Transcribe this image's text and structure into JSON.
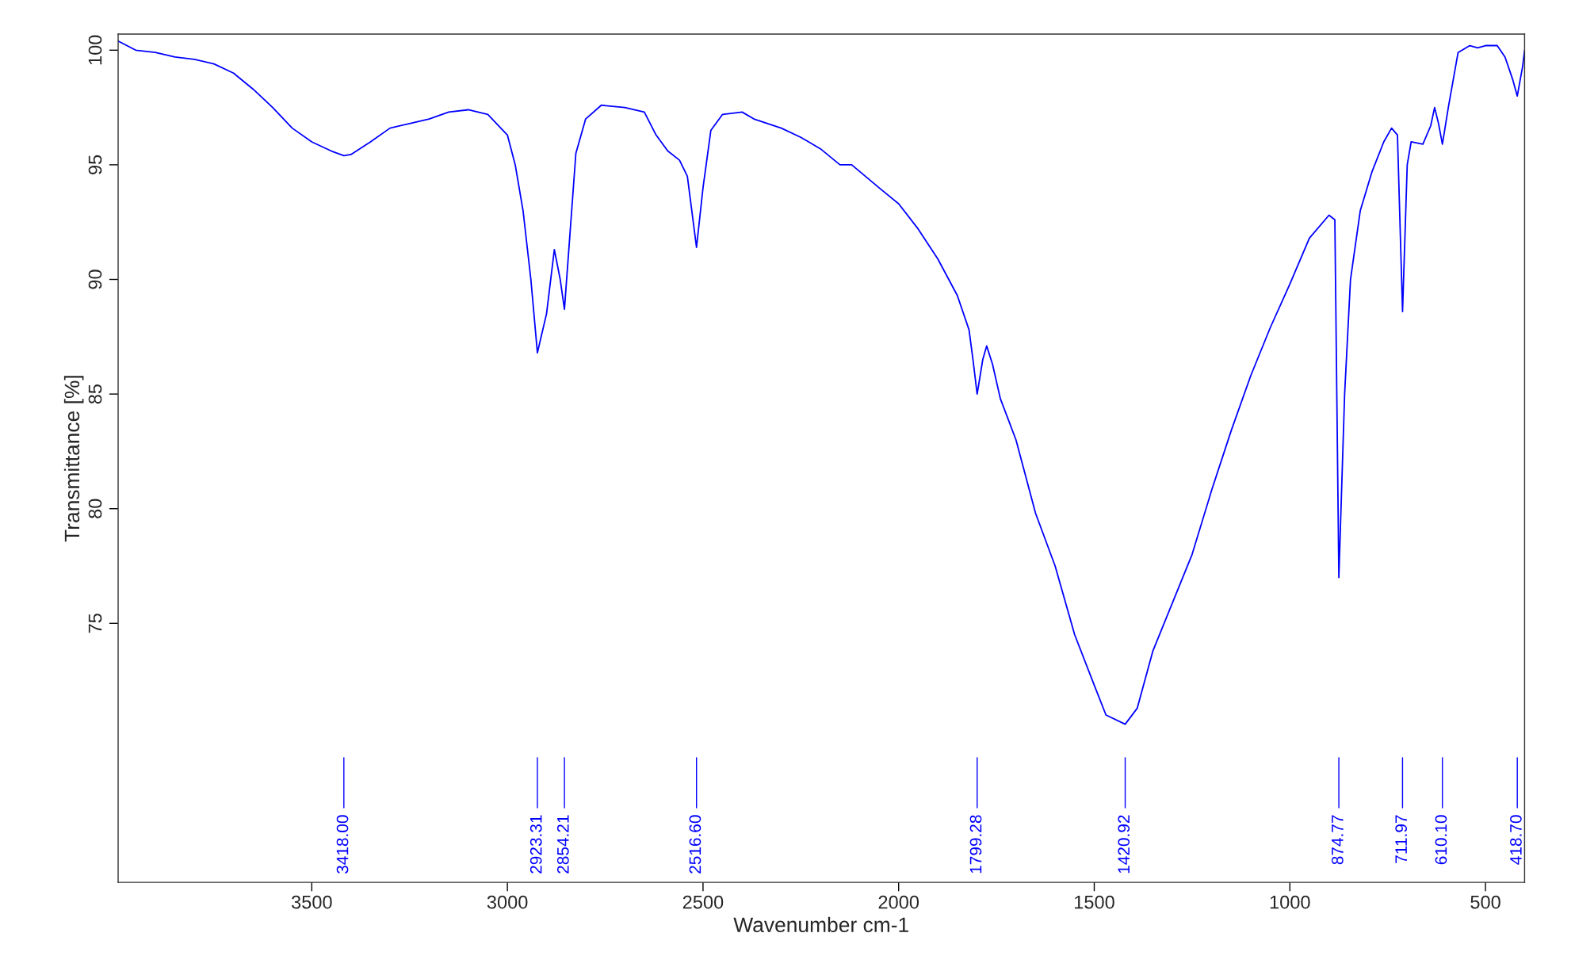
{
  "chart_data": {
    "type": "line",
    "xlabel": "Wavenumber cm-1",
    "ylabel": "Transmittance [%]",
    "xlim": [
      3995,
      400
    ],
    "ylim": [
      63.7,
      100.7
    ],
    "xticks": [
      3500,
      3000,
      2500,
      2000,
      1500,
      1000,
      500
    ],
    "yticks": [
      75,
      80,
      85,
      90,
      95,
      100
    ],
    "grid": false,
    "legend": false,
    "marker": "none",
    "line_style": "solid",
    "series": [
      {
        "color": "#0000ff",
        "x": [
          3995,
          3950,
          3900,
          3850,
          3800,
          3750,
          3700,
          3650,
          3600,
          3550,
          3500,
          3450,
          3418,
          3400,
          3350,
          3300,
          3250,
          3200,
          3150,
          3100,
          3050,
          3000,
          2980,
          2960,
          2940,
          2923.31,
          2900,
          2880,
          2865,
          2854.21,
          2840,
          2825,
          2800,
          2760,
          2700,
          2650,
          2620,
          2590,
          2560,
          2540,
          2516.6,
          2500,
          2480,
          2450,
          2400,
          2370,
          2300,
          2250,
          2200,
          2150,
          2120,
          2050,
          2000,
          1950,
          1900,
          1850,
          1820,
          1810,
          1799.28,
          1785,
          1775,
          1760,
          1740,
          1700,
          1650,
          1600,
          1550,
          1500,
          1470,
          1420.92,
          1390,
          1350,
          1300,
          1250,
          1200,
          1150,
          1100,
          1050,
          1000,
          950,
          900,
          885,
          874.77,
          860,
          845,
          820,
          790,
          760,
          740,
          725,
          711.97,
          700,
          690,
          660,
          640,
          630,
          620,
          610.1,
          595,
          570,
          540,
          520,
          500,
          470,
          450,
          430,
          418.7,
          405,
          400
        ],
        "values": [
          100.4,
          100.0,
          99.9,
          99.7,
          99.6,
          99.4,
          99.0,
          98.3,
          97.5,
          96.6,
          96.0,
          95.6,
          95.4,
          95.45,
          96.0,
          96.6,
          96.8,
          97.0,
          97.3,
          97.4,
          97.2,
          96.3,
          95.0,
          93.0,
          90.0,
          86.8,
          88.5,
          91.3,
          90.0,
          88.7,
          92.0,
          95.5,
          97.0,
          97.6,
          97.5,
          97.3,
          96.3,
          95.6,
          95.2,
          94.5,
          91.4,
          94.0,
          96.5,
          97.2,
          97.3,
          97.0,
          96.6,
          96.2,
          95.7,
          95.0,
          95.0,
          94.0,
          93.3,
          92.2,
          90.9,
          89.3,
          87.8,
          86.5,
          85.0,
          86.5,
          87.1,
          86.3,
          84.8,
          83.0,
          79.8,
          77.5,
          74.5,
          72.3,
          71.0,
          70.6,
          71.3,
          73.8,
          75.9,
          78.0,
          80.8,
          83.4,
          85.8,
          87.9,
          89.8,
          91.8,
          92.8,
          92.6,
          77.0,
          85.0,
          90.0,
          93.0,
          94.7,
          96.0,
          96.6,
          96.3,
          88.6,
          95.0,
          96.0,
          95.9,
          96.7,
          97.5,
          96.8,
          95.9,
          97.5,
          99.9,
          100.2,
          100.1,
          100.2,
          100.2,
          99.7,
          98.7,
          98.0,
          99.3,
          100.0
        ]
      }
    ],
    "annotations": [
      {
        "text": "3418.00",
        "x": 3418
      },
      {
        "text": "2923.31",
        "x": 2923.31
      },
      {
        "text": "2854.21",
        "x": 2854.21
      },
      {
        "text": "2516.60",
        "x": 2516.6
      },
      {
        "text": "1799.28",
        "x": 1799.28
      },
      {
        "text": "1420.92",
        "x": 1420.92
      },
      {
        "text": "874.77",
        "x": 874.77
      },
      {
        "text": "711.97",
        "x": 711.97
      },
      {
        "text": "610.10",
        "x": 610.1
      },
      {
        "text": "418.70",
        "x": 418.7
      }
    ]
  }
}
